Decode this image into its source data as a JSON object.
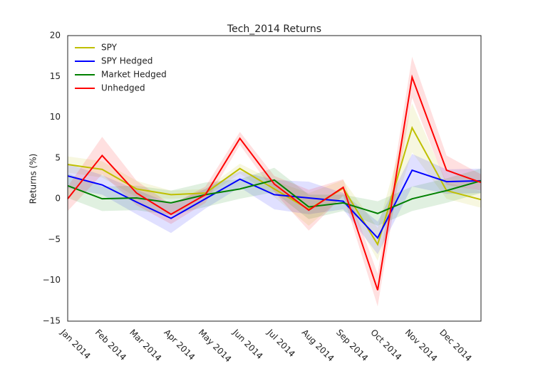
{
  "chart_data": {
    "type": "line",
    "title": "Tech_2014 Returns",
    "y_label": "Returns (%)",
    "categories": [
      "Jan 2014",
      "Feb 2014",
      "Mar 2014",
      "Apr 2014",
      "May 2014",
      "Jun 2014",
      "Jul 2014",
      "Aug 2014",
      "Sep 2014",
      "Oct 2014",
      "Nov 2014",
      "Dec 2014",
      null
    ],
    "series": [
      {
        "name": "SPY",
        "color": "#bfbf00",
        "values": [
          4.2,
          3.6,
          1.2,
          0.5,
          0.7,
          3.7,
          1.2,
          -1.3,
          1.3,
          -5.6,
          8.7,
          1.0,
          -0.1
        ],
        "errors": [
          1,
          1,
          1,
          0.5,
          0.5,
          0.6,
          1,
          2,
          1,
          2,
          3,
          1,
          1
        ]
      },
      {
        "name": "SPY Hedged",
        "color": "#0000ff",
        "values": [
          2.8,
          1.7,
          -0.4,
          -2.4,
          0.0,
          2.4,
          0.5,
          0.1,
          -0.3,
          -4.8,
          3.5,
          2.1,
          2.2
        ],
        "errors": [
          1.5,
          1.2,
          1.5,
          1.8,
          1.2,
          1,
          1.8,
          2,
          1,
          2,
          2,
          1.5,
          1.5
        ]
      },
      {
        "name": "Market Hedged",
        "color": "#008000",
        "values": [
          1.6,
          0.0,
          0.1,
          -0.5,
          0.5,
          1.2,
          2.3,
          -1.0,
          -0.5,
          -1.8,
          0.0,
          1.0,
          2.2
        ],
        "errors": [
          1.5,
          1.5,
          1.5,
          1.5,
          1.5,
          1.2,
          1.5,
          1.5,
          1,
          1.5,
          1.5,
          1.5,
          1.5
        ]
      },
      {
        "name": "Unhedged",
        "color": "#ff0000",
        "values": [
          0.0,
          5.3,
          0.7,
          -1.9,
          0.5,
          7.4,
          1.8,
          -1.4,
          1.4,
          -11.2,
          14.9,
          3.5,
          2.0
        ],
        "errors": [
          1.5,
          2.3,
          1.5,
          1.2,
          1,
          0.8,
          1,
          2.5,
          1,
          2,
          2.5,
          1.8,
          1
        ]
      }
    ],
    "ylim": [
      -15,
      20
    ],
    "yticks": [
      {
        "value": -15,
        "label": "−15"
      },
      {
        "value": -10,
        "label": "−10"
      },
      {
        "value": -5,
        "label": "−5"
      },
      0,
      5,
      10,
      15,
      20
    ],
    "legend": "upper left",
    "grid": false
  }
}
